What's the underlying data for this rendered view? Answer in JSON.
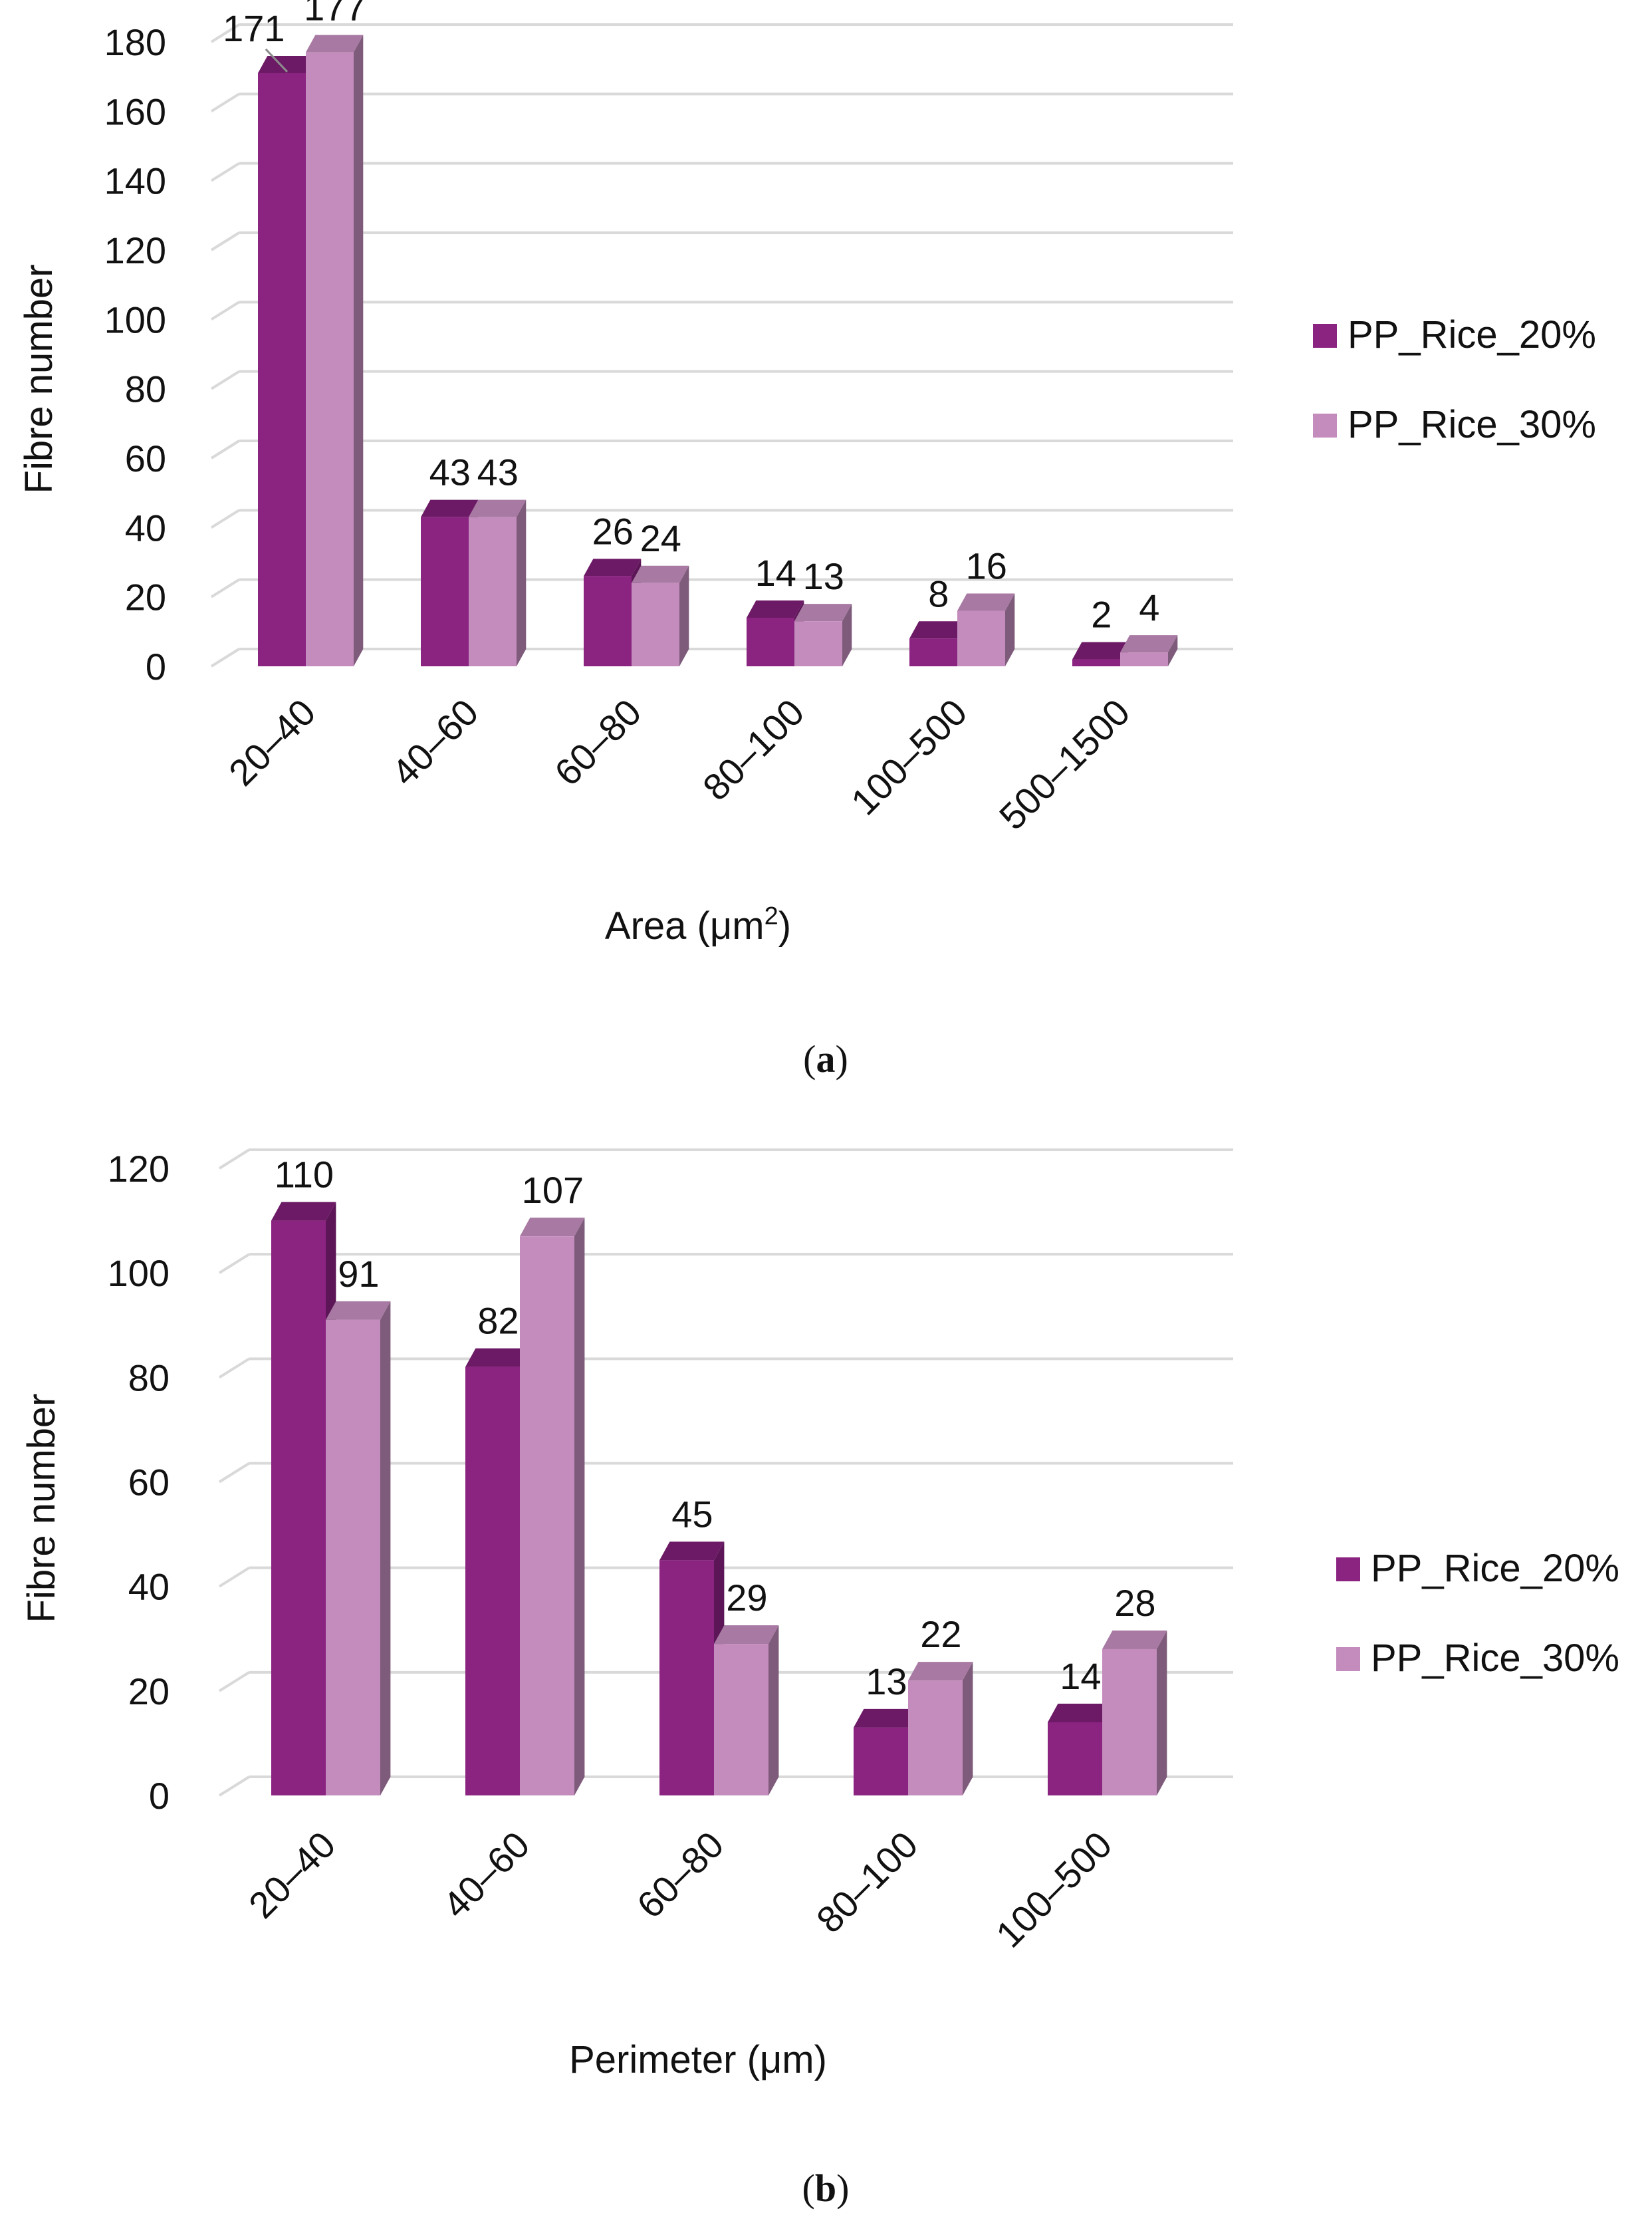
{
  "chart_data": [
    {
      "type": "bar",
      "caption": "a",
      "categories": [
        "20–40",
        "40–60",
        "60–80",
        "80–100",
        "100–500",
        "500–1500"
      ],
      "series": [
        {
          "name": "PP_Rice_20%",
          "values": [
            171,
            43,
            26,
            14,
            8,
            2
          ]
        },
        {
          "name": "PP_Rice_30%",
          "values": [
            177,
            43,
            24,
            13,
            16,
            4
          ]
        }
      ],
      "y_ticks": [
        "0",
        "20",
        "40",
        "60",
        "80",
        "100",
        "120",
        "140",
        "160",
        "180"
      ],
      "ylim": [
        0,
        180
      ],
      "ylabel": "Fibre number",
      "xlabel_main": "Area (μm",
      "xlabel_sup": "2",
      "xlabel_end": ")",
      "grid": true,
      "legend_position": "right"
    },
    {
      "type": "bar",
      "caption": "b",
      "categories": [
        "20–40",
        "40–60",
        "60–80",
        "80–100",
        "100–500"
      ],
      "series": [
        {
          "name": "PP_Rice_20%",
          "values": [
            110,
            82,
            45,
            13,
            14
          ]
        },
        {
          "name": "PP_Rice_30%",
          "values": [
            91,
            107,
            29,
            22,
            28
          ]
        }
      ],
      "y_ticks": [
        "0",
        "20",
        "40",
        "60",
        "80",
        "100",
        "120"
      ],
      "ylim": [
        0,
        120
      ],
      "ylabel": "Fibre number",
      "xlabel_main": "Perimeter (μm)",
      "xlabel_sup": "",
      "xlabel_end": "",
      "grid": true,
      "legend_position": "right"
    }
  ],
  "colors": {
    "series1_front": "#8b2381",
    "series1_side": "#5c1556",
    "series1_top": "#6d1a66",
    "series2_front": "#c48cbd",
    "series2_side": "#7e5b7b",
    "series2_top": "#a87aa3",
    "grid": "#d9d9d9"
  }
}
